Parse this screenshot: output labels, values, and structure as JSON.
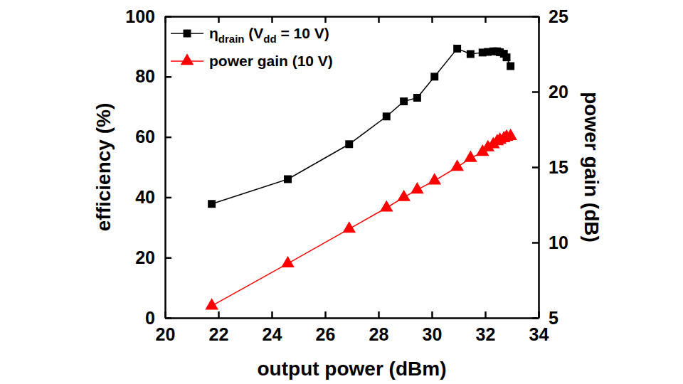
{
  "chart_data": {
    "type": "line",
    "x_label": "output power (dBm)",
    "y_label": "efficiency (%)",
    "y2_label": "power gain (dB)",
    "xlim": [
      20,
      34
    ],
    "xticks": [
      20,
      22,
      24,
      26,
      28,
      30,
      32,
      34
    ],
    "ylim": [
      0,
      100
    ],
    "yticks": [
      0,
      20,
      40,
      60,
      80,
      100
    ],
    "y2lim": [
      5,
      25
    ],
    "y2ticks": [
      5,
      10,
      15,
      20,
      25
    ],
    "legend": "upper left",
    "x": [
      21.75,
      24.6,
      26.9,
      28.3,
      28.95,
      29.45,
      30.1,
      30.95,
      31.45,
      31.9,
      32.1,
      32.3,
      32.45,
      32.55,
      32.7,
      32.8,
      32.95
    ],
    "series": [
      {
        "name": "ηdrain (Vdd = 10 V)",
        "color": "#000000",
        "marker": "square",
        "line_style": "solid",
        "values": [
          37.8,
          46,
          57.6,
          66.8,
          71.8,
          73,
          80,
          89.3,
          87.5,
          88,
          88.2,
          88.4,
          88.4,
          88.1,
          87.6,
          86.4,
          83.5
        ]
      },
      {
        "name": "power gain (10 V)",
        "color": "#ff0000",
        "marker": "triangle",
        "line_style": "solid",
        "axis": "y2",
        "values": [
          5.8,
          8.6,
          10.9,
          12.3,
          13,
          13.5,
          14.1,
          15,
          15.6,
          16,
          16.3,
          16.5,
          16.7,
          16.8,
          16.9,
          17,
          17.05
        ]
      }
    ]
  }
}
